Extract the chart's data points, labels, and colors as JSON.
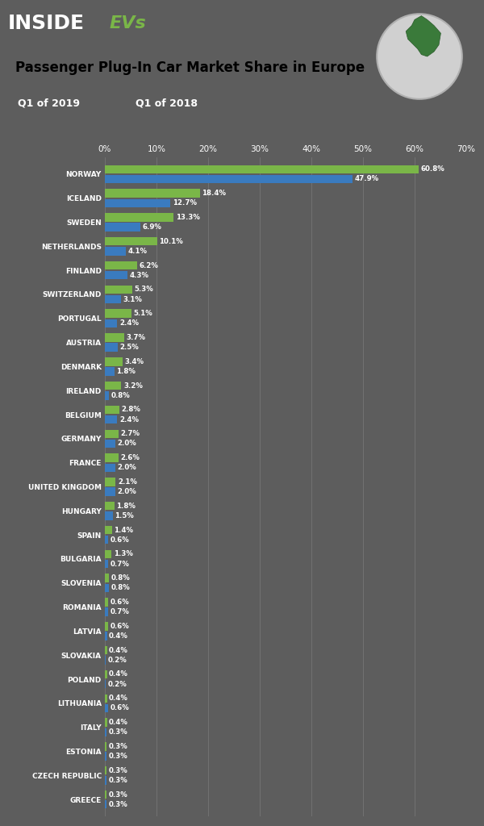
{
  "countries": [
    "NORWAY",
    "ICELAND",
    "SWEDEN",
    "NETHERLANDS",
    "FINLAND",
    "SWITZERLAND",
    "PORTUGAL",
    "AUSTRIA",
    "DENMARK",
    "IRELAND",
    "BELGIUM",
    "GERMANY",
    "FRANCE",
    "UNITED KINGDOM",
    "HUNGARY",
    "SPAIN",
    "BULGARIA",
    "SLOVENIA",
    "ROMANIA",
    "LATVIA",
    "SLOVAKIA",
    "POLAND",
    "LITHUANIA",
    "ITALY",
    "ESTONIA",
    "CZECH REPUBLIC",
    "GREECE"
  ],
  "q1_2019": [
    60.8,
    18.4,
    13.3,
    10.1,
    6.2,
    5.3,
    5.1,
    3.7,
    3.4,
    3.2,
    2.8,
    2.7,
    2.6,
    2.1,
    1.8,
    1.4,
    1.3,
    0.8,
    0.6,
    0.6,
    0.4,
    0.4,
    0.4,
    0.4,
    0.3,
    0.3,
    0.3
  ],
  "q1_2018": [
    47.9,
    12.7,
    6.9,
    4.1,
    4.3,
    3.1,
    2.4,
    2.5,
    1.8,
    0.8,
    2.4,
    2.0,
    2.0,
    2.0,
    1.5,
    0.6,
    0.7,
    0.8,
    0.7,
    0.4,
    0.2,
    0.2,
    0.6,
    0.3,
    0.3,
    0.3,
    0.3
  ],
  "color_2019": "#7ab648",
  "color_2018": "#3a7bbf",
  "bg_color": "#5d5d5d",
  "title_text": "Passenger Plug-In Car Market Share in Europe",
  "label_2019": "Q1 of 2019",
  "label_2018": "Q1 of 2018",
  "xlim": [
    0,
    70
  ],
  "xticks": [
    0,
    10,
    20,
    30,
    40,
    50,
    60,
    70
  ],
  "bar_height": 0.35,
  "bar_gap": 0.06
}
